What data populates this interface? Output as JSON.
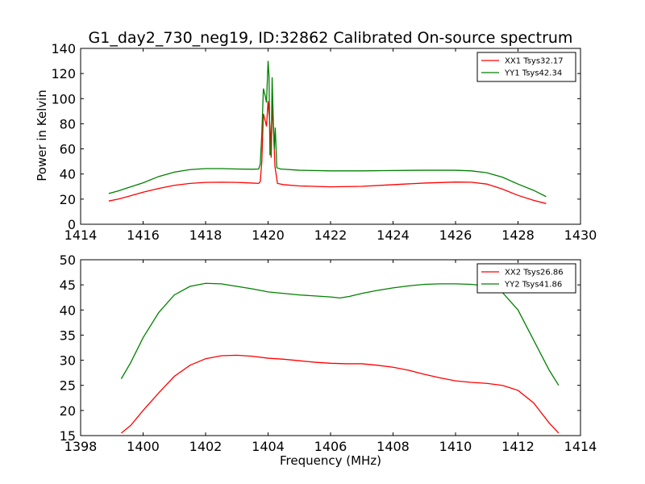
{
  "chart_data": [
    {
      "type": "line",
      "title": "G1_day2_730_neg19, ID:32862 Calibrated On-source spectrum",
      "xlabel": "",
      "ylabel": "Power in Kelvin",
      "xlim": [
        1414,
        1430
      ],
      "ylim": [
        0,
        140
      ],
      "xticks": [
        1414,
        1416,
        1418,
        1420,
        1422,
        1424,
        1426,
        1428,
        1430
      ],
      "yticks": [
        0,
        20,
        40,
        60,
        80,
        100,
        120,
        140
      ],
      "legend_position": "top-right",
      "grid": false,
      "series": [
        {
          "name": "XX1 Tsys32.17",
          "color": "#ff0000",
          "points": [
            [
              1414.9,
              18.5
            ],
            [
              1415.2,
              20
            ],
            [
              1415.5,
              22
            ],
            [
              1416,
              25.5
            ],
            [
              1416.5,
              28.5
            ],
            [
              1417,
              31
            ],
            [
              1417.5,
              32.5
            ],
            [
              1418,
              33.3
            ],
            [
              1418.5,
              33.5
            ],
            [
              1419,
              33.3
            ],
            [
              1419.5,
              32.8
            ],
            [
              1419.7,
              32.5
            ],
            [
              1419.75,
              34
            ],
            [
              1419.8,
              50
            ],
            [
              1419.85,
              88
            ],
            [
              1419.95,
              78
            ],
            [
              1420.0,
              98
            ],
            [
              1420.05,
              82
            ],
            [
              1420.08,
              70
            ],
            [
              1420.1,
              53
            ],
            [
              1420.13,
              96
            ],
            [
              1420.18,
              72
            ],
            [
              1420.22,
              46
            ],
            [
              1420.3,
              32.5
            ],
            [
              1420.5,
              31.5
            ],
            [
              1421,
              30.5
            ],
            [
              1422,
              29.8
            ],
            [
              1423,
              30.2
            ],
            [
              1424,
              31.5
            ],
            [
              1425,
              32.8
            ],
            [
              1426,
              33.6
            ],
            [
              1426.5,
              33.5
            ],
            [
              1427,
              32
            ],
            [
              1427.5,
              28
            ],
            [
              1428,
              23
            ],
            [
              1428.5,
              19
            ],
            [
              1428.9,
              16.5
            ]
          ]
        },
        {
          "name": "YY1 Tsys42.34",
          "color": "#008000",
          "points": [
            [
              1414.9,
              24.5
            ],
            [
              1415.2,
              26.5
            ],
            [
              1415.5,
              29
            ],
            [
              1416,
              33
            ],
            [
              1416.5,
              38
            ],
            [
              1417,
              41.5
            ],
            [
              1417.5,
              43.5
            ],
            [
              1418,
              44.3
            ],
            [
              1418.5,
              44.3
            ],
            [
              1419,
              44
            ],
            [
              1419.5,
              43.8
            ],
            [
              1419.7,
              44
            ],
            [
              1419.75,
              48
            ],
            [
              1419.8,
              72
            ],
            [
              1419.85,
              108
            ],
            [
              1419.9,
              103
            ],
            [
              1419.95,
              97
            ],
            [
              1420.0,
              130
            ],
            [
              1420.03,
              118
            ],
            [
              1420.06,
              55
            ],
            [
              1420.1,
              58
            ],
            [
              1420.13,
              117
            ],
            [
              1420.17,
              80
            ],
            [
              1420.2,
              60
            ],
            [
              1420.23,
              77
            ],
            [
              1420.28,
              45
            ],
            [
              1420.4,
              44
            ],
            [
              1421,
              43
            ],
            [
              1422,
              42.5
            ],
            [
              1423,
              42.5
            ],
            [
              1424,
              42.8
            ],
            [
              1425,
              43
            ],
            [
              1426,
              43
            ],
            [
              1426.5,
              42.5
            ],
            [
              1427,
              41
            ],
            [
              1427.5,
              37.5
            ],
            [
              1428,
              32
            ],
            [
              1428.5,
              27
            ],
            [
              1428.9,
              22
            ]
          ]
        }
      ]
    },
    {
      "type": "line",
      "title": "",
      "xlabel": "Frequency (MHz)",
      "ylabel": "",
      "xlim": [
        1398,
        1414
      ],
      "ylim": [
        15,
        50
      ],
      "xticks": [
        1398,
        1400,
        1402,
        1404,
        1406,
        1408,
        1410,
        1412,
        1414
      ],
      "yticks": [
        15,
        20,
        25,
        30,
        35,
        40,
        45,
        50
      ],
      "legend_position": "top-right",
      "grid": false,
      "series": [
        {
          "name": "XX2 Tsys26.86",
          "color": "#ff0000",
          "points": [
            [
              1399.3,
              15.5
            ],
            [
              1399.6,
              17
            ],
            [
              1400,
              20
            ],
            [
              1400.5,
              23.5
            ],
            [
              1401,
              26.8
            ],
            [
              1401.5,
              29
            ],
            [
              1402,
              30.3
            ],
            [
              1402.5,
              30.9
            ],
            [
              1403,
              31
            ],
            [
              1403.5,
              30.8
            ],
            [
              1404,
              30.4
            ],
            [
              1404.5,
              30.2
            ],
            [
              1405,
              29.9
            ],
            [
              1405.5,
              29.6
            ],
            [
              1406,
              29.4
            ],
            [
              1406.5,
              29.3
            ],
            [
              1407,
              29.3
            ],
            [
              1407.5,
              29
            ],
            [
              1408,
              28.6
            ],
            [
              1408.5,
              28
            ],
            [
              1409,
              27.2
            ],
            [
              1409.5,
              26.5
            ],
            [
              1410,
              25.9
            ],
            [
              1410.5,
              25.6
            ],
            [
              1411,
              25.4
            ],
            [
              1411.5,
              25
            ],
            [
              1412,
              24
            ],
            [
              1412.5,
              21.5
            ],
            [
              1413,
              17.5
            ],
            [
              1413.3,
              15.5
            ]
          ]
        },
        {
          "name": "YY2 Tsys41.86",
          "color": "#008000",
          "points": [
            [
              1399.3,
              26.3
            ],
            [
              1399.6,
              29.5
            ],
            [
              1400,
              34.5
            ],
            [
              1400.5,
              39.5
            ],
            [
              1401,
              43
            ],
            [
              1401.5,
              44.7
            ],
            [
              1402,
              45.3
            ],
            [
              1402.5,
              45.2
            ],
            [
              1403,
              44.7
            ],
            [
              1403.5,
              44.2
            ],
            [
              1404,
              43.6
            ],
            [
              1404.5,
              43.3
            ],
            [
              1405,
              43
            ],
            [
              1405.5,
              42.8
            ],
            [
              1406,
              42.6
            ],
            [
              1406.3,
              42.4
            ],
            [
              1406.6,
              42.7
            ],
            [
              1407,
              43.3
            ],
            [
              1407.5,
              43.9
            ],
            [
              1408,
              44.4
            ],
            [
              1408.5,
              44.8
            ],
            [
              1409,
              45.1
            ],
            [
              1409.5,
              45.2
            ],
            [
              1410,
              45.2
            ],
            [
              1410.5,
              45.1
            ],
            [
              1411,
              44.8
            ],
            [
              1411.5,
              43.5
            ],
            [
              1412,
              40
            ],
            [
              1412.5,
              34
            ],
            [
              1413,
              28
            ],
            [
              1413.3,
              25
            ]
          ]
        }
      ]
    }
  ]
}
